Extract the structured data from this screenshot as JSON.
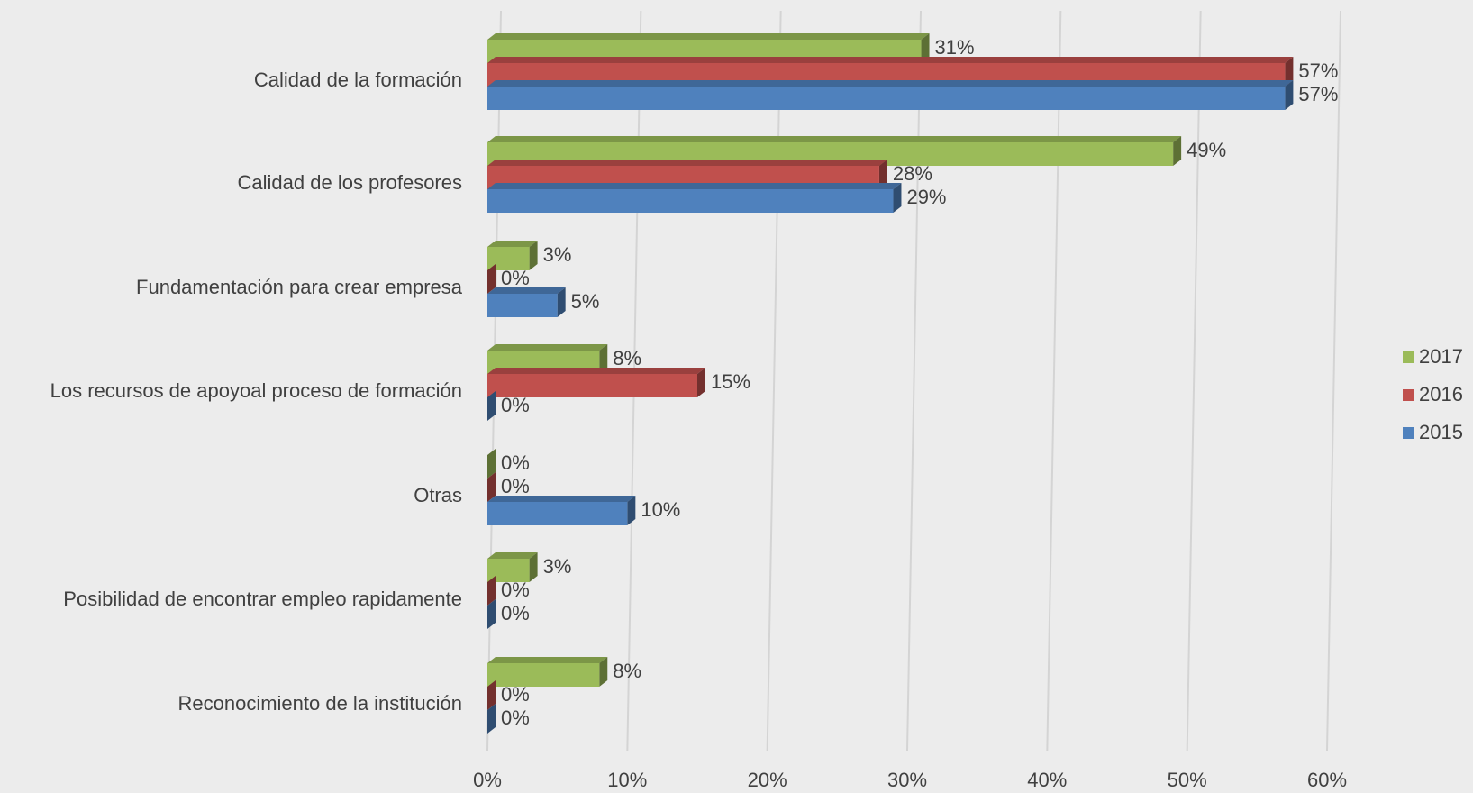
{
  "chart_data": {
    "type": "bar3d_horizontal",
    "categories": [
      "Calidad de la formación",
      "Calidad de los profesores",
      "Fundamentación para crear empresa",
      "Los recursos de apoyoal proceso de formación",
      "Otras",
      "Posibilidad de encontrar empleo rapidamente",
      "Reconocimiento de la institución"
    ],
    "series": [
      {
        "name": "2017",
        "color": "#9bbb59",
        "values": [
          31,
          49,
          3,
          8,
          0,
          3,
          8
        ],
        "value_labels": [
          "31%",
          "49%",
          "3%",
          "8%",
          "0%",
          "3%",
          "8%"
        ]
      },
      {
        "name": "2016",
        "color": "#c0504d",
        "values": [
          57,
          28,
          0,
          15,
          0,
          0,
          0
        ],
        "value_labels": [
          "57%",
          "28%",
          "0%",
          "15%",
          "0%",
          "0%",
          "0%"
        ]
      },
      {
        "name": "2015",
        "color": "#4f81bd",
        "values": [
          57,
          29,
          5,
          0,
          10,
          0,
          0
        ],
        "value_labels": [
          "57%",
          "29%",
          "5%",
          "0%",
          "10%",
          "0%",
          "0%"
        ]
      }
    ],
    "xlim": [
      0,
      60
    ],
    "xticks": [
      {
        "value": 0,
        "label": "0%"
      },
      {
        "value": 10,
        "label": "10%"
      },
      {
        "value": 20,
        "label": "20%"
      },
      {
        "value": 30,
        "label": "30%"
      },
      {
        "value": 40,
        "label": "40%"
      },
      {
        "value": 50,
        "label": "50%"
      },
      {
        "value": 60,
        "label": "60%"
      }
    ],
    "grid": true,
    "legend": "right"
  }
}
